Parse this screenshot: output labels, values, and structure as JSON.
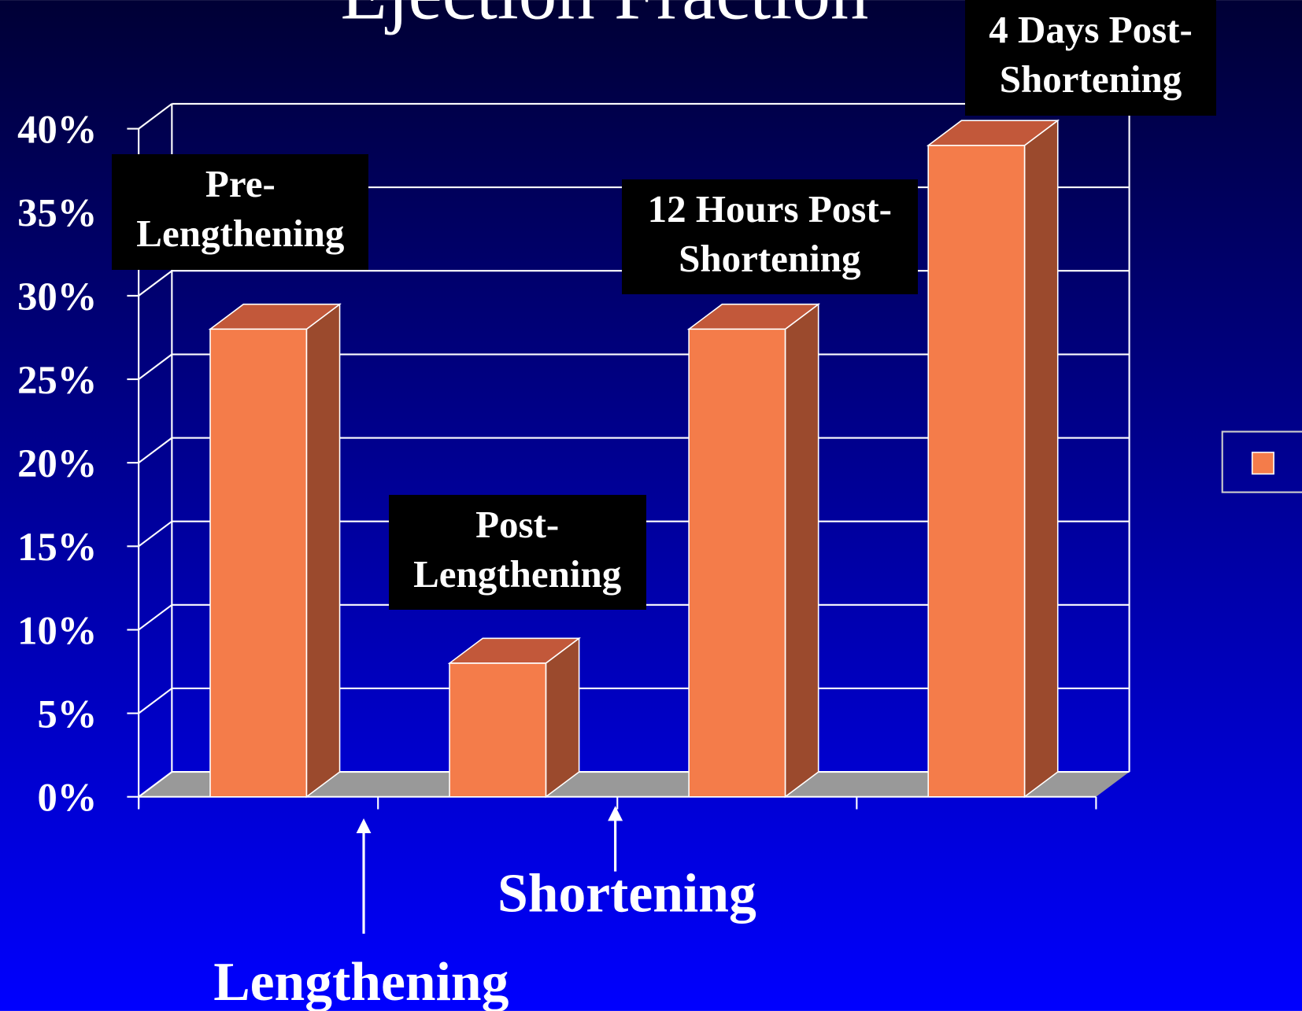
{
  "chart_data": {
    "type": "bar3d",
    "title": "Ejection Fraction",
    "categories": [
      "Pre-\nLengthening",
      "Post-\nLengthening",
      "12 Hours Post-\nShortening",
      "4 Days Post-\nShortening"
    ],
    "values": [
      28,
      8,
      28,
      39
    ],
    "color": "#f47c4a",
    "ylim": [
      0,
      40
    ],
    "yticks": [
      {
        "value": 0,
        "label": "0%"
      },
      {
        "value": 5,
        "label": "5%"
      },
      {
        "value": 10,
        "label": "10%"
      },
      {
        "value": 15,
        "label": "15%"
      },
      {
        "value": 20,
        "label": "20%"
      },
      {
        "value": 25,
        "label": "25%"
      },
      {
        "value": 30,
        "label": "30%"
      },
      {
        "value": 35,
        "label": "35%"
      },
      {
        "value": 40,
        "label": "40%"
      }
    ],
    "grid": true,
    "legend": "right",
    "annotations": [
      "Shortening",
      "Lengthening"
    ]
  }
}
